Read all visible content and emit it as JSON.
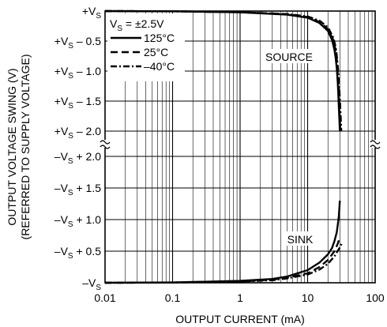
{
  "chart_data": {
    "type": "line",
    "xlabel": "OUTPUT CURRENT (mA)",
    "ylabel_line1": "OUTPUT VOLTAGE SWING (V)",
    "ylabel_line2": "(REFERRED TO SUPPLY VOLTAGE)",
    "x_scale": "log",
    "xlim": [
      0.01,
      100
    ],
    "x_ticks": [
      "0.01",
      "0.1",
      "1",
      "10",
      "100"
    ],
    "y_ticks_top": [
      {
        "main": "+V",
        "sub": "S",
        "rest": ""
      },
      {
        "main": "+V",
        "sub": "S",
        "rest": " – 0.5"
      },
      {
        "main": "+V",
        "sub": "S",
        "rest": " – 1.0"
      },
      {
        "main": "+V",
        "sub": "S",
        "rest": " – 1.5"
      },
      {
        "main": "+V",
        "sub": "S",
        "rest": " – 2.0"
      }
    ],
    "y_ticks_bottom": [
      {
        "main": "–V",
        "sub": "S",
        "rest": " + 2.0"
      },
      {
        "main": "–V",
        "sub": "S",
        "rest": " + 1.5"
      },
      {
        "main": "–V",
        "sub": "S",
        "rest": " + 1.0"
      },
      {
        "main": "–V",
        "sub": "S",
        "rest": " + 0.5"
      },
      {
        "main": "–V",
        "sub": "S",
        "rest": ""
      }
    ],
    "condition": {
      "main": "V",
      "sub": "S",
      "rest": " = ±2.5V"
    },
    "grid": true,
    "axis_break": true,
    "annotations": {
      "source": "SOURCE",
      "sink": "SINK"
    },
    "series": [
      {
        "name": "125°C",
        "style": "solid",
        "source": {
          "x": [
            0.01,
            0.1,
            1,
            5,
            10,
            15,
            20,
            23,
            25,
            26,
            27,
            28,
            28.5,
            29,
            29.5,
            30
          ],
          "y": [
            0.0,
            -0.004,
            -0.02,
            -0.06,
            -0.11,
            -0.2,
            -0.33,
            -0.48,
            -0.65,
            -0.78,
            -0.95,
            -1.2,
            -1.4,
            -1.6,
            -1.8,
            -2.0
          ]
        },
        "sink": {
          "x": [
            0.01,
            0.1,
            1,
            3,
            5,
            10,
            15,
            20,
            23,
            25,
            27,
            28,
            29,
            29.5,
            30
          ],
          "y": [
            0.0,
            0.005,
            0.03,
            0.06,
            0.1,
            0.2,
            0.32,
            0.45,
            0.55,
            0.66,
            0.8,
            0.92,
            1.05,
            1.18,
            1.3
          ]
        }
      },
      {
        "name": "25°C",
        "style": "dashed",
        "source": {
          "x": [
            0.01,
            0.1,
            1,
            5,
            10,
            15,
            20,
            24,
            26,
            27,
            28,
            29,
            29.5,
            30,
            30.5
          ],
          "y": [
            0.0,
            -0.004,
            -0.02,
            -0.05,
            -0.1,
            -0.18,
            -0.3,
            -0.48,
            -0.65,
            -0.8,
            -1.0,
            -1.3,
            -1.55,
            -1.8,
            -2.0
          ]
        },
        "sink": {
          "x": [
            0.01,
            0.1,
            1,
            3,
            5,
            10,
            15,
            20,
            25,
            28,
            30
          ],
          "y": [
            0.0,
            0.004,
            0.02,
            0.05,
            0.08,
            0.15,
            0.25,
            0.36,
            0.5,
            0.62,
            0.72
          ]
        }
      },
      {
        "name": "–40°C",
        "style": "dashdot",
        "source": {
          "x": [
            0.01,
            0.1,
            1,
            5,
            10,
            15,
            20,
            24,
            26,
            27,
            28,
            29,
            30,
            31,
            31.5
          ],
          "y": [
            0.0,
            -0.004,
            -0.02,
            -0.05,
            -0.09,
            -0.16,
            -0.27,
            -0.44,
            -0.6,
            -0.74,
            -0.92,
            -1.15,
            -1.45,
            -1.8,
            -2.0
          ]
        },
        "sink": {
          "x": [
            0.01,
            0.1,
            1,
            3,
            5,
            10,
            15,
            20,
            25,
            30,
            32
          ],
          "y": [
            0.0,
            0.004,
            0.02,
            0.04,
            0.07,
            0.13,
            0.21,
            0.3,
            0.42,
            0.56,
            0.62
          ]
        }
      }
    ]
  }
}
